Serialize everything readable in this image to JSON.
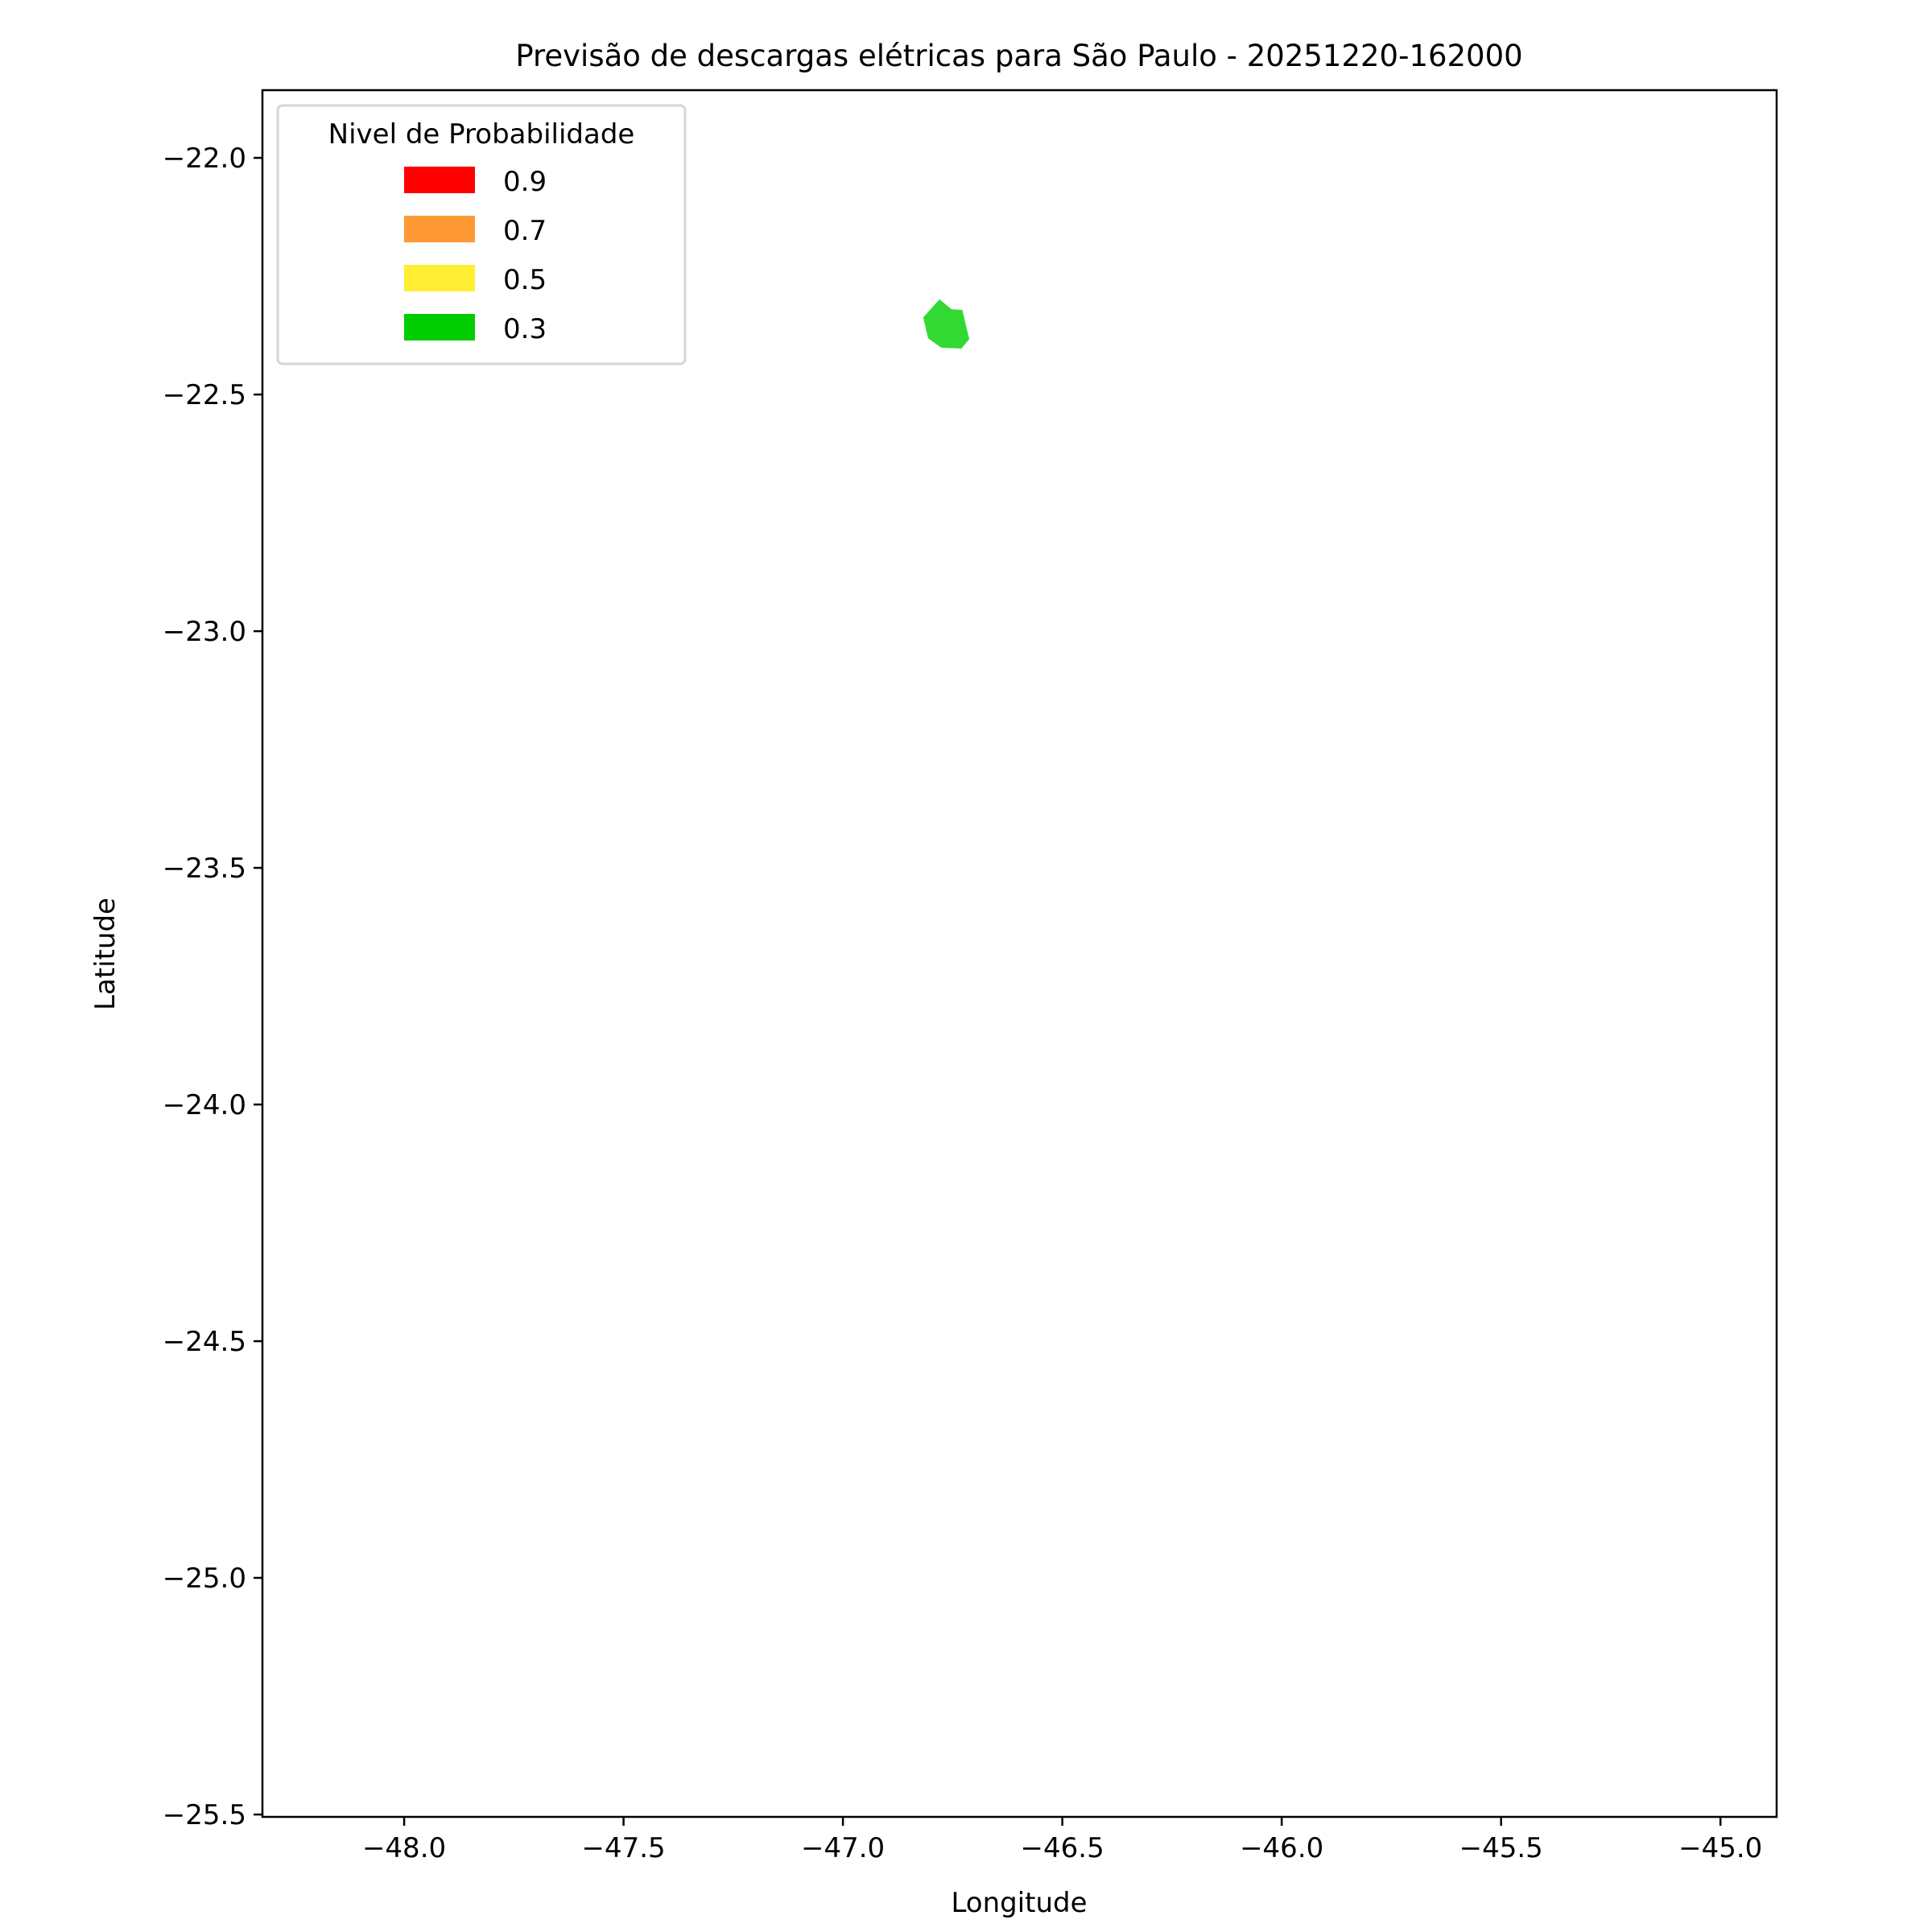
{
  "chart_data": {
    "type": "map",
    "title": "Previsão de descargas elétricas para São Paulo - 20251220-162000",
    "xlabel": "Longitude",
    "ylabel": "Latitude",
    "xlim": [
      -48.323,
      -44.872
    ],
    "ylim": [
      -25.505,
      -21.857
    ],
    "xticks": [
      -48.0,
      -47.5,
      -47.0,
      -46.5,
      -46.0,
      -45.5,
      -45.0
    ],
    "xtick_labels": [
      "−48.0",
      "−47.5",
      "−47.0",
      "−46.5",
      "−46.0",
      "−45.5",
      "−45.0"
    ],
    "yticks": [
      -22.0,
      -22.5,
      -23.0,
      -23.5,
      -24.0,
      -24.5,
      -25.0,
      -25.5
    ],
    "ytick_labels": [
      "−22.0",
      "−22.5",
      "−23.0",
      "−23.5",
      "−24.0",
      "−24.5",
      "−25.0",
      "−25.5"
    ],
    "grid": false,
    "legend": {
      "title": "Nivel de Probabilidade",
      "placement": "top-left",
      "entries": [
        {
          "label": "0.9",
          "color": "#ff0000"
        },
        {
          "label": "0.7",
          "color": "#ff9933"
        },
        {
          "label": "0.5",
          "color": "#ffee33"
        },
        {
          "label": "0.3",
          "color": "#00cc00"
        }
      ]
    },
    "polygons": [
      {
        "level": "0.3",
        "color": "#33d933",
        "points": [
          [
            -46.78,
            -22.299
          ],
          [
            -46.752,
            -22.32
          ],
          [
            -46.728,
            -22.321
          ],
          [
            -46.712,
            -22.383
          ],
          [
            -46.73,
            -22.403
          ],
          [
            -46.776,
            -22.401
          ],
          [
            -46.806,
            -22.381
          ],
          [
            -46.817,
            -22.337
          ]
        ]
      }
    ]
  }
}
